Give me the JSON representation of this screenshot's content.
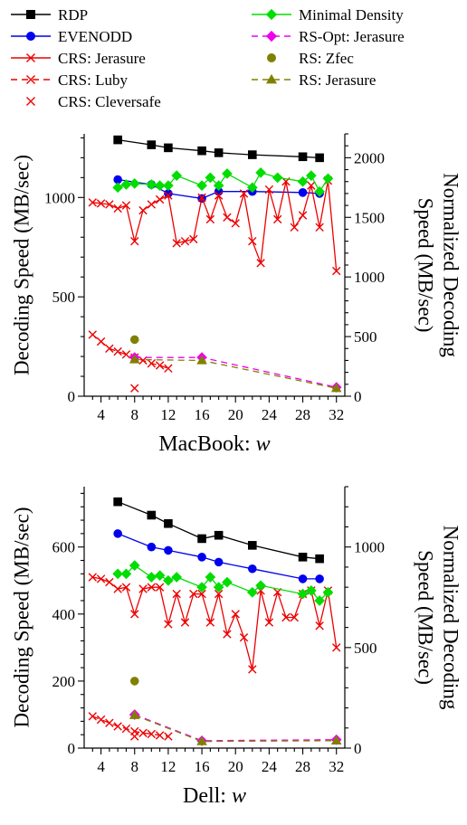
{
  "legend": [
    {
      "label": "RDP",
      "color": "#000000",
      "marker": "square",
      "dash": "solid"
    },
    {
      "label": "EVENODD",
      "color": "#0000ee",
      "marker": "circle",
      "dash": "solid"
    },
    {
      "label": "CRS: Jerasure",
      "color": "#ee0000",
      "marker": "x",
      "dash": "solid"
    },
    {
      "label": "CRS: Luby",
      "color": "#ee0000",
      "marker": "x",
      "dash": "dashed"
    },
    {
      "label": "CRS: Cleversafe",
      "color": "#ee0000",
      "marker": "x",
      "dash": "none"
    },
    {
      "label": "Minimal Density",
      "color": "#00dd00",
      "marker": "diamond",
      "dash": "solid"
    },
    {
      "label": "RS-Opt: Jerasure",
      "color": "#ee00ee",
      "marker": "diamond",
      "dash": "dashed"
    },
    {
      "label": "RS: Zfec",
      "color": "#808000",
      "marker": "circle",
      "dash": "none"
    },
    {
      "label": "RS: Jerasure",
      "color": "#808000",
      "marker": "triangle",
      "dash": "dashed"
    }
  ],
  "chart_data": [
    {
      "type": "line",
      "xlabel_main": "MacBook: ",
      "xlabel_var": "w",
      "ylabel_left": "Decoding Speed (MB/sec)",
      "ylabel_right_line1": "Normalized Decoding",
      "ylabel_right_line2": "Speed (MB/sec)",
      "xlim": [
        2,
        33
      ],
      "ylim_left": [
        0,
        1320
      ],
      "ylim_right": [
        0,
        2200
      ],
      "x_ticks": [
        4,
        8,
        12,
        16,
        20,
        24,
        28,
        32
      ],
      "y_ticks_left": [
        0,
        500,
        1000
      ],
      "y_ticks_right": [
        0,
        500,
        1000,
        1500,
        2000
      ],
      "series": [
        {
          "name": "RDP",
          "points": [
            [
              6,
              1290
            ],
            [
              10,
              1265
            ],
            [
              12,
              1250
            ],
            [
              16,
              1235
            ],
            [
              18,
              1225
            ],
            [
              22,
              1215
            ],
            [
              28,
              1205
            ],
            [
              30,
              1200
            ]
          ]
        },
        {
          "name": "EVENODD",
          "points": [
            [
              6,
              1090
            ],
            [
              10,
              1065
            ],
            [
              12,
              1020
            ],
            [
              16,
              995
            ],
            [
              18,
              1030
            ],
            [
              22,
              1030
            ],
            [
              28,
              1025
            ],
            [
              30,
              1020
            ]
          ]
        },
        {
          "name": "CRS: Jerasure",
          "points": [
            [
              3,
              975
            ],
            [
              4,
              970
            ],
            [
              5,
              965
            ],
            [
              6,
              945
            ],
            [
              7,
              960
            ],
            [
              8,
              780
            ],
            [
              9,
              935
            ],
            [
              10,
              965
            ],
            [
              11,
              990
            ],
            [
              12,
              1010
            ],
            [
              13,
              770
            ],
            [
              14,
              780
            ],
            [
              15,
              790
            ],
            [
              16,
              1000
            ],
            [
              17,
              890
            ],
            [
              18,
              1010
            ],
            [
              19,
              900
            ],
            [
              20,
              870
            ],
            [
              21,
              1020
            ],
            [
              22,
              780
            ],
            [
              23,
              670
            ],
            [
              24,
              1040
            ],
            [
              25,
              890
            ],
            [
              26,
              1080
            ],
            [
              27,
              850
            ],
            [
              28,
              910
            ],
            [
              29,
              1060
            ],
            [
              30,
              850
            ],
            [
              31,
              1085
            ],
            [
              32,
              630
            ]
          ]
        },
        {
          "name": "CRS: Luby",
          "points": [
            [
              3,
              310
            ],
            [
              4,
              275
            ],
            [
              5,
              240
            ],
            [
              6,
              225
            ],
            [
              7,
              210
            ],
            [
              8,
              195
            ],
            [
              9,
              180
            ],
            [
              10,
              165
            ],
            [
              11,
              155
            ],
            [
              12,
              140
            ]
          ]
        },
        {
          "name": "CRS: Cleversafe",
          "points": [
            [
              8,
              40
            ]
          ]
        },
        {
          "name": "Minimal Density",
          "points": [
            [
              6,
              1050
            ],
            [
              7,
              1065
            ],
            [
              8,
              1070
            ],
            [
              10,
              1065
            ],
            [
              11,
              1060
            ],
            [
              12,
              1060
            ],
            [
              13,
              1110
            ],
            [
              16,
              1060
            ],
            [
              17,
              1100
            ],
            [
              18,
              1060
            ],
            [
              19,
              1120
            ],
            [
              22,
              1050
            ],
            [
              23,
              1125
            ],
            [
              25,
              1100
            ],
            [
              28,
              1080
            ],
            [
              29,
              1110
            ],
            [
              30,
              1030
            ],
            [
              31,
              1095
            ]
          ]
        },
        {
          "name": "RS-Opt: Jerasure",
          "points": [
            [
              8,
              195
            ],
            [
              16,
              195
            ],
            [
              32,
              45
            ]
          ]
        },
        {
          "name": "RS: Zfec",
          "points": [
            [
              8,
              285
            ]
          ]
        },
        {
          "name": "RS: Jerasure",
          "points": [
            [
              8,
              185
            ],
            [
              16,
              180
            ],
            [
              32,
              40
            ]
          ]
        }
      ]
    },
    {
      "type": "line",
      "xlabel_main": "Dell: ",
      "xlabel_var": "w",
      "ylabel_left": "Decoding Speed (MB/sec)",
      "ylabel_right_line1": "Normalized Decoding",
      "ylabel_right_line2": "Speed (MB/sec)",
      "xlim": [
        2,
        33
      ],
      "ylim_left": [
        0,
        780
      ],
      "ylim_right": [
        0,
        1300
      ],
      "x_ticks": [
        4,
        8,
        12,
        16,
        20,
        24,
        28,
        32
      ],
      "y_ticks_left": [
        0,
        200,
        400,
        600
      ],
      "y_ticks_right": [
        0,
        500,
        1000
      ],
      "series": [
        {
          "name": "RDP",
          "points": [
            [
              6,
              735
            ],
            [
              10,
              695
            ],
            [
              12,
              670
            ],
            [
              16,
              625
            ],
            [
              18,
              635
            ],
            [
              22,
              605
            ],
            [
              28,
              570
            ],
            [
              30,
              565
            ]
          ]
        },
        {
          "name": "EVENODD",
          "points": [
            [
              6,
              640
            ],
            [
              10,
              600
            ],
            [
              12,
              590
            ],
            [
              16,
              570
            ],
            [
              18,
              555
            ],
            [
              22,
              535
            ],
            [
              28,
              505
            ],
            [
              30,
              505
            ]
          ]
        },
        {
          "name": "CRS: Jerasure",
          "points": [
            [
              3,
              510
            ],
            [
              4,
              505
            ],
            [
              5,
              495
            ],
            [
              6,
              475
            ],
            [
              7,
              480
            ],
            [
              8,
              400
            ],
            [
              9,
              475
            ],
            [
              10,
              480
            ],
            [
              11,
              480
            ],
            [
              12,
              370
            ],
            [
              13,
              460
            ],
            [
              14,
              375
            ],
            [
              15,
              460
            ],
            [
              16,
              460
            ],
            [
              17,
              375
            ],
            [
              18,
              460
            ],
            [
              19,
              340
            ],
            [
              20,
              400
            ],
            [
              21,
              330
            ],
            [
              22,
              235
            ],
            [
              23,
              470
            ],
            [
              24,
              375
            ],
            [
              25,
              465
            ],
            [
              26,
              390
            ],
            [
              27,
              390
            ],
            [
              28,
              460
            ],
            [
              29,
              470
            ],
            [
              30,
              365
            ],
            [
              31,
              470
            ],
            [
              32,
              300
            ]
          ]
        },
        {
          "name": "CRS: Luby",
          "points": [
            [
              3,
              95
            ],
            [
              4,
              85
            ],
            [
              5,
              75
            ],
            [
              6,
              65
            ],
            [
              7,
              58
            ],
            [
              8,
              50
            ],
            [
              9,
              45
            ],
            [
              10,
              42
            ],
            [
              11,
              38
            ],
            [
              12,
              35
            ]
          ]
        },
        {
          "name": "CRS: Cleversafe",
          "points": [
            [
              8,
              35
            ]
          ]
        },
        {
          "name": "Minimal Density",
          "points": [
            [
              6,
              520
            ],
            [
              7,
              520
            ],
            [
              8,
              545
            ],
            [
              10,
              510
            ],
            [
              11,
              515
            ],
            [
              12,
              500
            ],
            [
              13,
              510
            ],
            [
              16,
              480
            ],
            [
              17,
              510
            ],
            [
              18,
              480
            ],
            [
              19,
              495
            ],
            [
              22,
              465
            ],
            [
              23,
              485
            ],
            [
              28,
              460
            ],
            [
              29,
              470
            ],
            [
              30,
              440
            ],
            [
              31,
              465
            ]
          ]
        },
        {
          "name": "RS-Opt: Jerasure",
          "points": [
            [
              8,
              100
            ],
            [
              16,
              22
            ],
            [
              32,
              25
            ]
          ]
        },
        {
          "name": "RS: Zfec",
          "points": [
            [
              8,
              200
            ]
          ]
        },
        {
          "name": "RS: Jerasure",
          "points": [
            [
              8,
              98
            ],
            [
              16,
              20
            ],
            [
              32,
              22
            ]
          ]
        }
      ]
    }
  ]
}
